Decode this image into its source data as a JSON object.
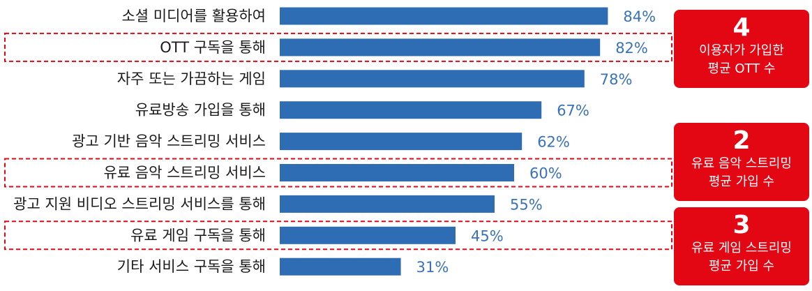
{
  "chart_data": {
    "type": "bar",
    "orientation": "horizontal",
    "categories": [
      "소셜 미디어를 활용하여",
      "OTT 구독을 통해",
      "자주 또는 가끔하는 게임",
      "유료방송 가입을 통해",
      "광고 기반 음악 스트리밍 서비스",
      "유료 음악 스트리밍 서비스",
      "광고 지원 비디오 스트리밍 서비스를 통해",
      "유료 게임 구독을 통해",
      "기타 서비스 구독을 통해"
    ],
    "values": [
      84,
      82,
      78,
      67,
      62,
      60,
      55,
      45,
      31
    ],
    "value_labels": [
      "84%",
      "82%",
      "78%",
      "67%",
      "62%",
      "60%",
      "55%",
      "45%",
      "31%"
    ],
    "highlighted_categories": [
      1,
      5,
      7
    ],
    "colors": {
      "bar": "#2e6db4",
      "value_label": "#3a72b8",
      "highlight": "#e30613"
    }
  },
  "callouts": [
    {
      "number": "4",
      "lines": [
        "이용자가 가입한",
        "평균 OTT 수"
      ]
    },
    {
      "number": "2",
      "lines": [
        "유료 음악 스트리밍",
        "평균 가입 수"
      ]
    },
    {
      "number": "3",
      "lines": [
        "유료 게임 스트리밍",
        "평균 가입 수"
      ]
    }
  ]
}
